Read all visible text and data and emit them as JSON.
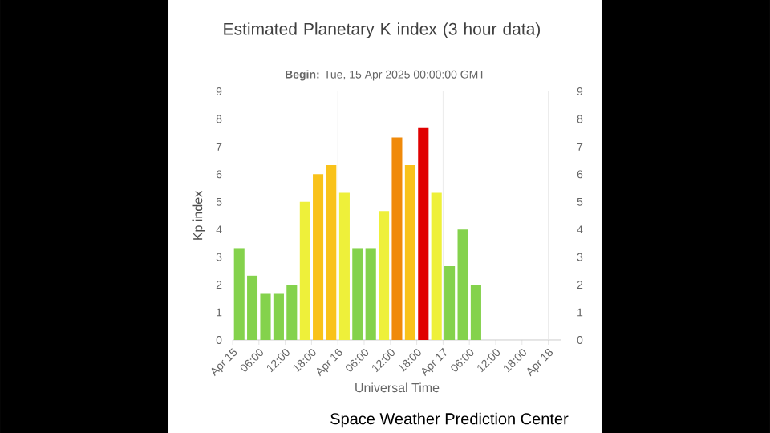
{
  "chart_data": {
    "type": "bar",
    "title": "Estimated Planetary K index (3 hour data)",
    "subtitle": "**Begin:** Tue, 15 Apr 2025 00:00:00 GMT",
    "xlabel": "Universal Time",
    "ylabel": "Kp index",
    "annotations": [
      "Space Weather Prediction Center"
    ],
    "x": [
      "2025-04-15T01:30",
      "2025-04-15T04:30",
      "2025-04-15T07:30",
      "2025-04-15T10:30",
      "2025-04-15T13:30",
      "2025-04-15T16:30",
      "2025-04-15T19:30",
      "2025-04-15T22:30",
      "2025-04-16T01:30",
      "2025-04-16T04:30",
      "2025-04-16T07:30",
      "2025-04-16T10:30",
      "2025-04-16T13:30",
      "2025-04-16T16:30",
      "2025-04-16T19:30",
      "2025-04-16T22:30",
      "2025-04-17T01:30",
      "2025-04-17T04:30",
      "2025-04-17T07:30"
    ],
    "values": [
      3.33,
      2.33,
      1.67,
      1.67,
      2.0,
      5.0,
      6.0,
      6.33,
      5.33,
      3.33,
      3.33,
      4.67,
      7.33,
      6.33,
      7.67,
      5.33,
      2.67,
      4.0,
      2.0
    ],
    "colors": [
      "#84d24c",
      "#84d24c",
      "#84d24c",
      "#84d24c",
      "#84d24c",
      "#eef03a",
      "#f9c21a",
      "#f9c21a",
      "#eef03a",
      "#84d24c",
      "#84d24c",
      "#eef03a",
      "#f08a0a",
      "#f9c21a",
      "#e00000",
      "#eef03a",
      "#84d24c",
      "#84d24c",
      "#84d24c"
    ],
    "xlim": [
      "2025-04-15T00:00",
      "2025-04-18T03:00"
    ],
    "xticks": [
      {
        "value": "2025-04-15T00:00",
        "label": "Apr 15"
      },
      {
        "value": "2025-04-15T06:00",
        "label": "06:00"
      },
      {
        "value": "2025-04-15T12:00",
        "label": "12:00"
      },
      {
        "value": "2025-04-15T18:00",
        "label": "18:00"
      },
      {
        "value": "2025-04-16T00:00",
        "label": "Apr 16"
      },
      {
        "value": "2025-04-16T06:00",
        "label": "06:00"
      },
      {
        "value": "2025-04-16T12:00",
        "label": "12:00"
      },
      {
        "value": "2025-04-16T18:00",
        "label": "18:00"
      },
      {
        "value": "2025-04-17T00:00",
        "label": "Apr 17"
      },
      {
        "value": "2025-04-17T06:00",
        "label": "06:00"
      },
      {
        "value": "2025-04-17T12:00",
        "label": "12:00"
      },
      {
        "value": "2025-04-17T18:00",
        "label": "18:00"
      },
      {
        "value": "2025-04-18T00:00",
        "label": "Apr 18"
      }
    ],
    "ylim": [
      0,
      9
    ],
    "yticks": [
      0,
      1,
      2,
      3,
      4,
      5,
      6,
      7,
      8,
      9
    ],
    "y2lim": [
      0,
      9
    ],
    "y2ticks": [
      0,
      1,
      2,
      3,
      4,
      5,
      6,
      7,
      8,
      9
    ],
    "ref_lines": [
      {
        "axis": "x",
        "value": "2025-04-16T00:00",
        "color": "#e6e6e6"
      },
      {
        "axis": "x",
        "value": "2025-04-17T00:00",
        "color": "#e6e6e6"
      },
      {
        "axis": "x",
        "value": "2025-04-18T00:00",
        "color": "#e6e6e6"
      }
    ],
    "grid": false
  }
}
